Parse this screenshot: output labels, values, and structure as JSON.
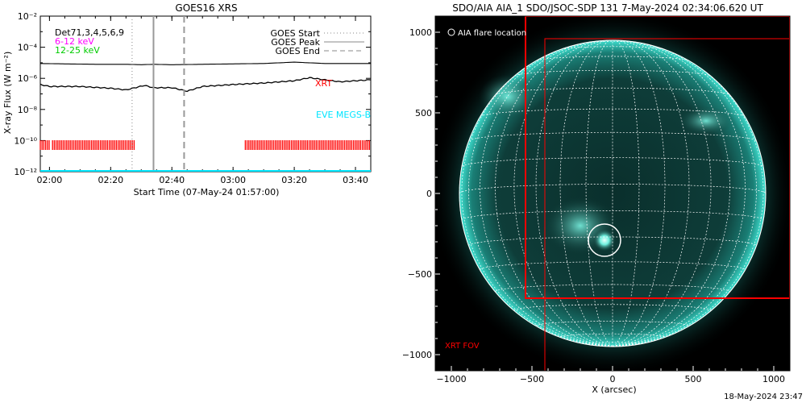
{
  "left_panel": {
    "title": "GOES16 XRS",
    "xlabel": "Start Time (07-May-24 01:57:00)",
    "ylabel": "X-ray Flux (W m⁻²)",
    "detectors_label": "Det71,3,4,5,6,9",
    "band1_label": "6-12 keV",
    "band2_label": "12-25 keV",
    "legend_start": "GOES Start",
    "legend_peak": "GOES Peak",
    "legend_end": "GOES End",
    "xrt_label": "XRT",
    "eve_label": "EVE MEGS-B",
    "colors": {
      "band1": "#ff00ff",
      "band2": "#00cc00",
      "xrt": "#ff0000",
      "eve": "#00e5ff"
    }
  },
  "right_panel": {
    "title": "SDO/AIA AIA_1 SDO/JSOC-SDP 131  7-May-2024 02:34:06.620 UT",
    "xlabel": "X (arcsec)",
    "flare_label": "AIA flare location",
    "fov_label": "XRT FOV",
    "colors": {
      "disk": "#0d3b37",
      "limb": "#22c7b8",
      "fov": "#ff0000"
    }
  },
  "footer": "18-May-2024 23:47",
  "chart_data": [
    {
      "type": "line",
      "title": "GOES16 XRS",
      "xlabel": "Start Time (07-May-24 01:57:00)",
      "ylabel": "X-ray Flux (W m⁻²)",
      "y_scale": "log",
      "xlim": [
        "01:57",
        "03:45"
      ],
      "ylim": [
        1e-12,
        0.01
      ],
      "x_ticks": [
        "02:00",
        "02:20",
        "02:40",
        "03:00",
        "03:20",
        "03:40"
      ],
      "y_ticks": [
        "10⁻¹²",
        "10⁻¹⁰",
        "10⁻⁸",
        "10⁻⁶",
        "10⁻⁴",
        "10⁻²"
      ],
      "series": [
        {
          "name": "",
          "color": "#000000",
          "x": [
            "01:57",
            "02:05",
            "02:15",
            "02:25",
            "02:30",
            "02:34",
            "02:40",
            "02:50",
            "03:00",
            "03:10",
            "03:20",
            "03:30",
            "03:40",
            "03:45"
          ],
          "values": [
            9e-06,
            8.5e-06,
            8e-06,
            8e-06,
            7.5e-06,
            8e-06,
            7.5e-06,
            8e-06,
            8.5e-06,
            9e-06,
            1.1e-05,
            9e-06,
            9e-06,
            9e-06
          ]
        },
        {
          "name": "",
          "color": "#000000",
          "x": [
            "01:57",
            "02:00",
            "02:10",
            "02:20",
            "02:25",
            "02:31",
            "02:34",
            "02:40",
            "02:45",
            "02:50",
            "03:00",
            "03:10",
            "03:20",
            "03:25",
            "03:30",
            "03:35",
            "03:40",
            "03:45"
          ],
          "values": [
            4e-07,
            3e-07,
            3e-07,
            2.3e-07,
            1.8e-07,
            3.5e-07,
            2.5e-07,
            2.5e-07,
            1.5e-07,
            3e-07,
            4e-07,
            5e-07,
            7e-07,
            1.1e-06,
            8e-07,
            6e-07,
            7e-07,
            8e-07
          ]
        }
      ],
      "markers": {
        "goes_start": "02:27",
        "goes_peak": "02:34",
        "goes_end": "02:44"
      },
      "xrt_coverage": [
        [
          "01:57",
          "02:00"
        ],
        [
          "02:01",
          "02:28"
        ],
        [
          "03:04",
          "03:45"
        ]
      ],
      "eve_megs_b": "full",
      "grid": false,
      "legend": "top-right"
    },
    {
      "type": "image",
      "title": "SDO/AIA AIA_1 SDO/JSOC-SDP 131  7-May-2024 02:34:06.620 UT",
      "xlabel": "X (arcsec)",
      "xlim": [
        -1100,
        1100
      ],
      "ylim": [
        -1100,
        1100
      ],
      "x_ticks": [
        -1000,
        -500,
        0,
        500,
        1000
      ],
      "y_ticks": [
        -1000,
        -500,
        0,
        500,
        1000
      ],
      "disk_radius": 950,
      "flare_location": [
        -50,
        -290
      ],
      "xrt_fov": {
        "x": [
          -540,
          1100
        ],
        "y": [
          -650,
          1100
        ]
      },
      "xrt_fov_outer": {
        "x": [
          -420,
          1100
        ],
        "y": [
          -1100,
          960
        ]
      }
    }
  ]
}
